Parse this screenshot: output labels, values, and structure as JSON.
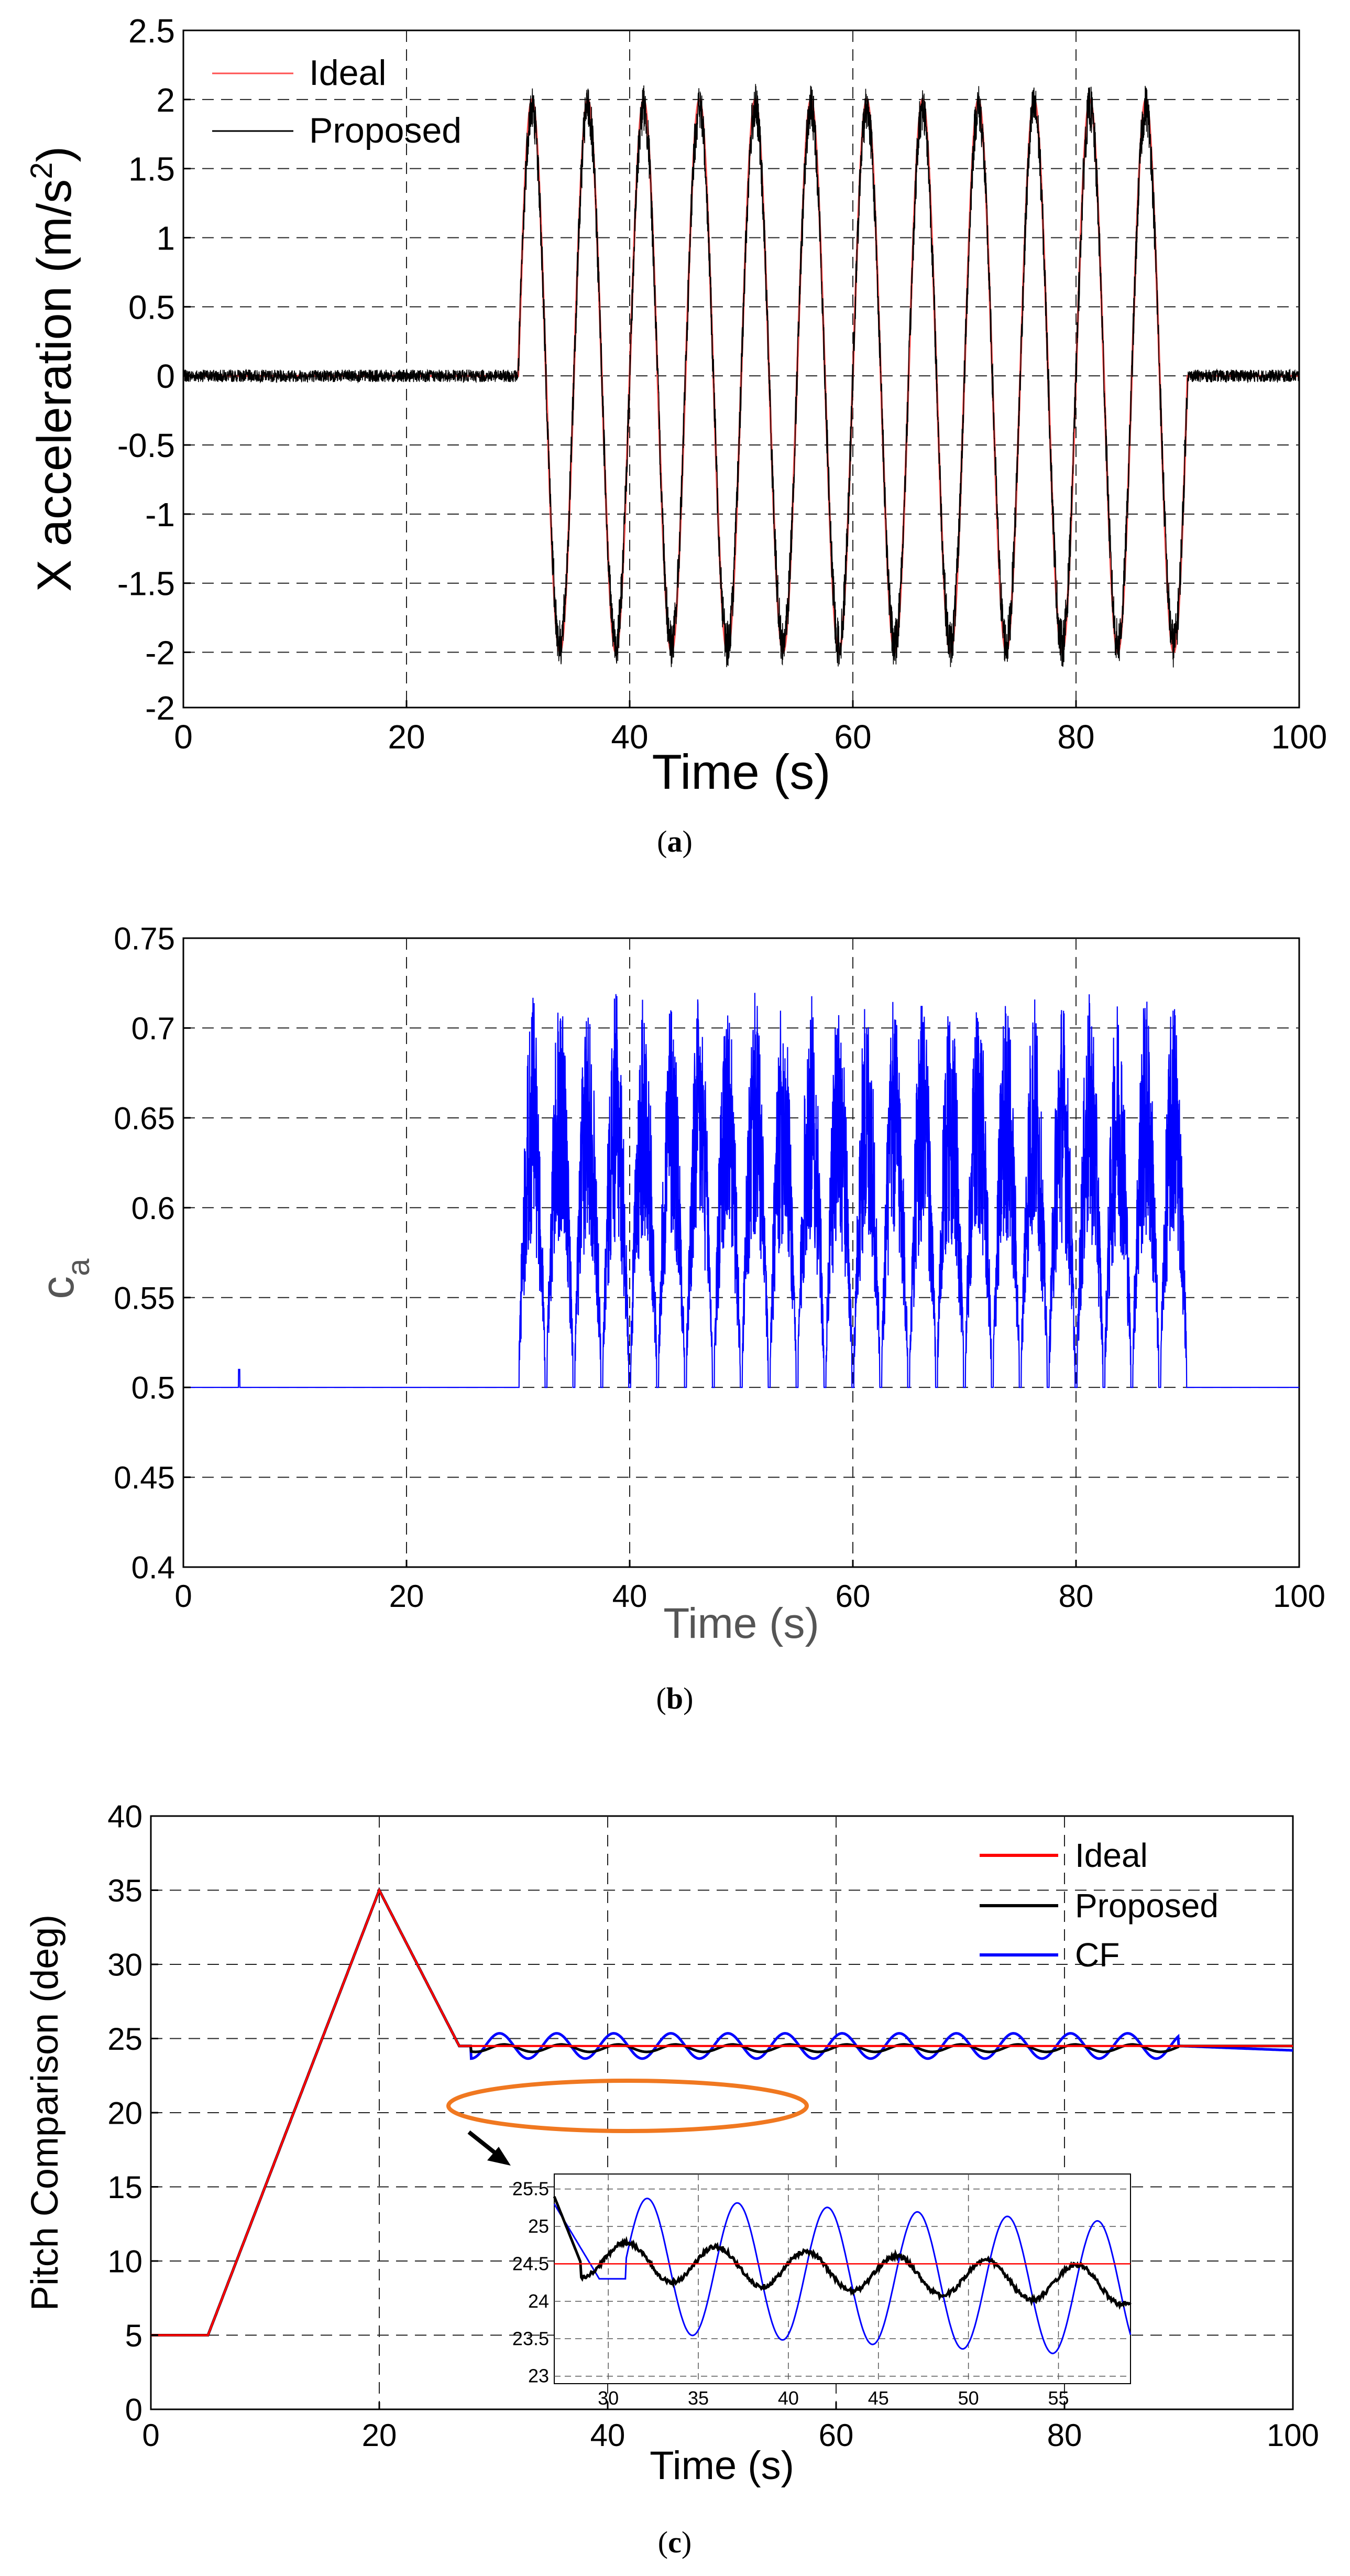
{
  "chart_data": [
    {
      "type": "line",
      "caption_open": "(",
      "caption_letter": "a",
      "caption_close": ")",
      "title": "",
      "xlabel": "Time (s)",
      "ylabel": "X acceleration (m/s",
      "ylabel_sup": "2",
      "ylabel_end": ")",
      "xlim": [
        0,
        100
      ],
      "ylim": [
        -2,
        2.5
      ],
      "xticks": [
        "0",
        "20",
        "40",
        "60",
        "80",
        "100"
      ],
      "yticks": [
        "-2",
        "-2",
        "-1.5",
        "-1",
        "-0.5",
        "0",
        "0.5",
        "1",
        "1.5",
        "2",
        "2.5"
      ],
      "grid": true,
      "legend": [
        "Ideal",
        "Proposed"
      ],
      "legend_placement": "top-left",
      "colors": {
        "ideal": "#ff5050",
        "proposed": "#000000"
      },
      "series": [
        {
          "name": "Ideal",
          "description": "0 until t=30 s, then 2*sin(2*pi*(t-30)/5) until t=90 s, then 0",
          "amplitude": 2,
          "period": 5,
          "start": 30,
          "end": 90
        },
        {
          "name": "Proposed",
          "description": "ideal signal plus measurement noise",
          "noise_amplitude": 0.05
        }
      ]
    },
    {
      "type": "line",
      "caption_open": "(",
      "caption_letter": "b",
      "caption_close": ")",
      "title": "",
      "xlabel": "Time (s)",
      "ylabel": "c",
      "ylabel_sub": "a",
      "xlim": [
        0,
        100
      ],
      "ylim": [
        0.4,
        0.75
      ],
      "xticks": [
        "0",
        "20",
        "40",
        "60",
        "80",
        "100"
      ],
      "yticks": [
        "0.4",
        "0.45",
        "0.5",
        "0.55",
        "0.6",
        "0.65",
        "0.7",
        "0.75"
      ],
      "grid": true,
      "colors": {
        "series": "#0000ff"
      },
      "series": [
        {
          "name": "c_a",
          "description": "baseline 0.5; spikes between 0.5 and ~0.71 from t=30 s to t=90 s",
          "baseline": 0.5,
          "max": 0.71
        }
      ]
    },
    {
      "type": "line",
      "caption_open": "(",
      "caption_letter": "c",
      "caption_close": ")",
      "title": "",
      "xlabel": "Time (s)",
      "ylabel": "Pitch Comparison (deg)",
      "xlim": [
        0,
        100
      ],
      "ylim": [
        0,
        40
      ],
      "xticks": [
        "0",
        "20",
        "40",
        "60",
        "80",
        "100"
      ],
      "yticks": [
        "0",
        "5",
        "10",
        "15",
        "20",
        "25",
        "30",
        "35",
        "40"
      ],
      "grid": true,
      "legend": [
        "Ideal",
        "Proposed",
        "CF"
      ],
      "legend_placement": "top-right",
      "colors": {
        "ideal": "#ff0000",
        "proposed": "#000000",
        "cf": "#0000ff",
        "highlight": "#f07820"
      },
      "series": [
        {
          "name": "Ideal",
          "x": [
            0,
            5,
            20,
            25,
            27,
            100
          ],
          "y": [
            5,
            5,
            35,
            27.5,
            24.5,
            24.5
          ]
        },
        {
          "name": "Proposed",
          "x": [
            0,
            5,
            20,
            25,
            27,
            100
          ],
          "y": [
            5,
            5,
            35,
            27.5,
            24.5,
            24.5
          ],
          "oscillation_amplitude": 0.25
        },
        {
          "name": "CF",
          "x": [
            0,
            5,
            20,
            25,
            27,
            90,
            100
          ],
          "y": [
            5,
            5,
            35,
            27.5,
            24.5,
            24.5,
            24.2
          ],
          "oscillation_amplitude": 0.85,
          "oscillation_period": 5
        }
      ],
      "inset": {
        "xlim": [
          27,
          59
        ],
        "ylim": [
          22.9,
          25.7
        ],
        "xticks": [
          "30",
          "35",
          "40",
          "45",
          "50",
          "55"
        ],
        "yticks": [
          "23",
          "23.5",
          "24",
          "24.5",
          "25",
          "25.5"
        ]
      }
    }
  ]
}
